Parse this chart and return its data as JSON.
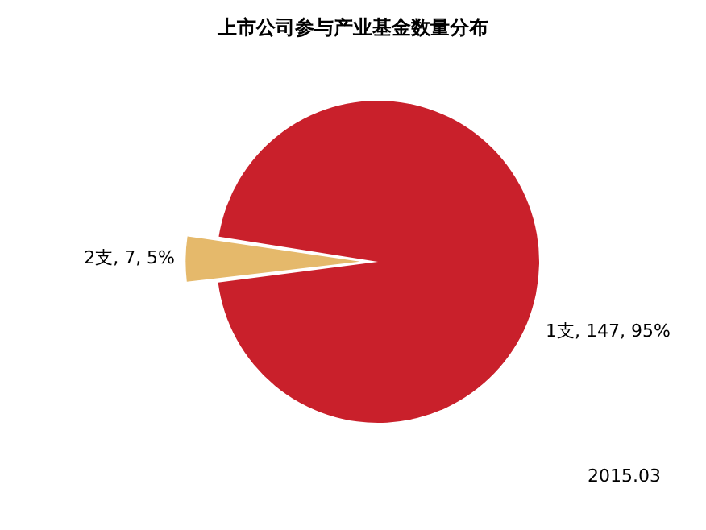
{
  "chart_data": {
    "type": "pie",
    "title": "上市公司参与产业基金数量分布",
    "categories": [
      "1支",
      "2支"
    ],
    "values": [
      147,
      7
    ],
    "colors": [
      "#c9202b",
      "#e5b96b"
    ],
    "value_labels": [
      "147, 95%",
      "7, 5%"
    ],
    "legend": false,
    "annotations": [
      "2015.03"
    ]
  }
}
